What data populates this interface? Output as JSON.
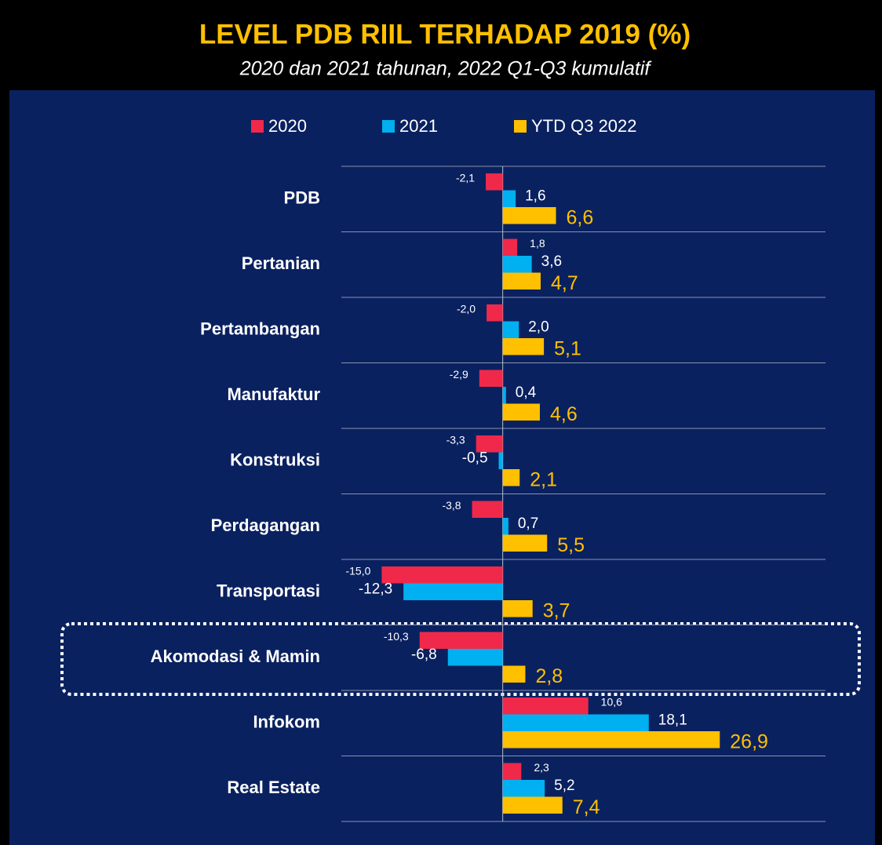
{
  "chart_data": {
    "type": "bar",
    "orientation": "horizontal",
    "title": "LEVEL PDB RIIL TERHADAP 2019 (%)",
    "subtitle": "2020 dan 2021 tahunan, 2022 Q1-Q3 kumulatif",
    "categories": [
      "PDB",
      "Pertanian",
      "Pertambangan",
      "Manufaktur",
      "Konstruksi",
      "Perdagangan",
      "Transportasi",
      "Akomodasi & Mamin",
      "Infokom",
      "Real Estate"
    ],
    "series": [
      {
        "name": "2020",
        "color": "#f0294a",
        "values": [
          -2.1,
          1.8,
          -2.0,
          -2.9,
          -3.3,
          -3.8,
          -15.0,
          -10.3,
          10.6,
          2.3
        ],
        "value_labels": [
          "-2,1",
          "1,8",
          "-2,0",
          "-2,9",
          "-3,3",
          "-3,8",
          "-15,0",
          "-10,3",
          "10,6",
          "2,3"
        ]
      },
      {
        "name": "2021",
        "color": "#00b0f0",
        "values": [
          1.6,
          3.6,
          2.0,
          0.4,
          -0.5,
          0.7,
          -12.3,
          -6.8,
          18.1,
          5.2
        ],
        "value_labels": [
          "1,6",
          "3,6",
          "2,0",
          "0,4",
          "-0,5",
          "0,7",
          "-12,3",
          "-6,8",
          "18,1",
          "5,2"
        ]
      },
      {
        "name": "YTD Q3 2022",
        "color": "#ffc000",
        "values": [
          6.6,
          4.7,
          5.1,
          4.6,
          2.1,
          5.5,
          3.7,
          2.8,
          26.9,
          7.4
        ],
        "value_labels": [
          "6,6",
          "4,7",
          "5,1",
          "4,6",
          "2,1",
          "5,5",
          "3,7",
          "2,8",
          "26,9",
          "7,4"
        ]
      }
    ],
    "xlim": [
      -20,
      40
    ],
    "legend": "top"
  }
}
